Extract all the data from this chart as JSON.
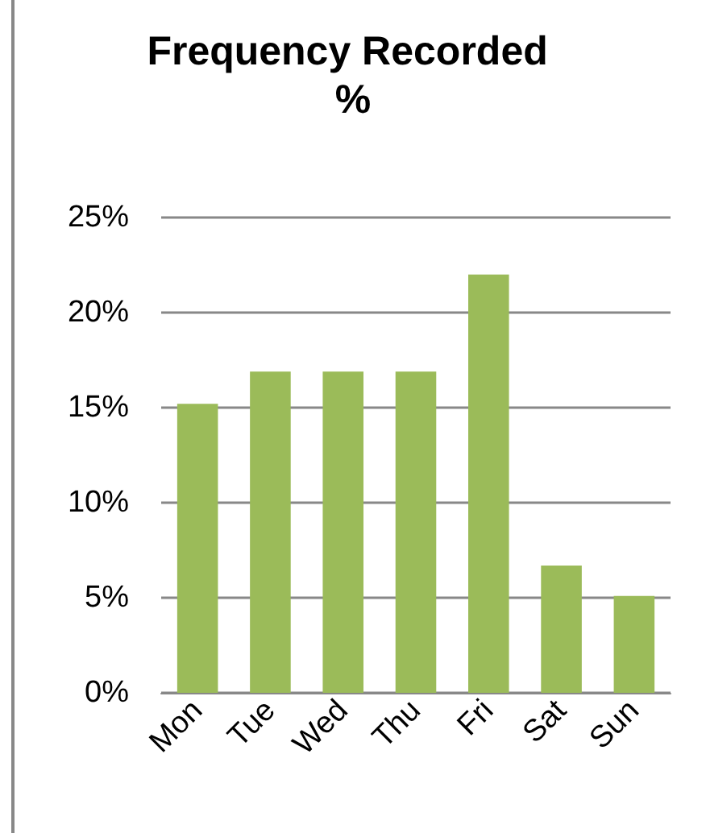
{
  "chart_data": {
    "type": "bar",
    "title": "Frequency Recorded %",
    "categories": [
      "Mon",
      "Tue",
      "Wed",
      "Thu",
      "Fri",
      "Sat",
      "Sun"
    ],
    "values": [
      15.2,
      16.9,
      16.9,
      16.9,
      22.0,
      6.7,
      5.1
    ],
    "color": "#9bbb59",
    "ylim": [
      0,
      25
    ],
    "yticks": [
      {
        "value": 0,
        "label": "0%"
      },
      {
        "value": 5,
        "label": "5%"
      },
      {
        "value": 10,
        "label": "10%"
      },
      {
        "value": 15,
        "label": "15%"
      },
      {
        "value": 20,
        "label": "20%"
      },
      {
        "value": 25,
        "label": "25%"
      }
    ],
    "grid": "y"
  }
}
